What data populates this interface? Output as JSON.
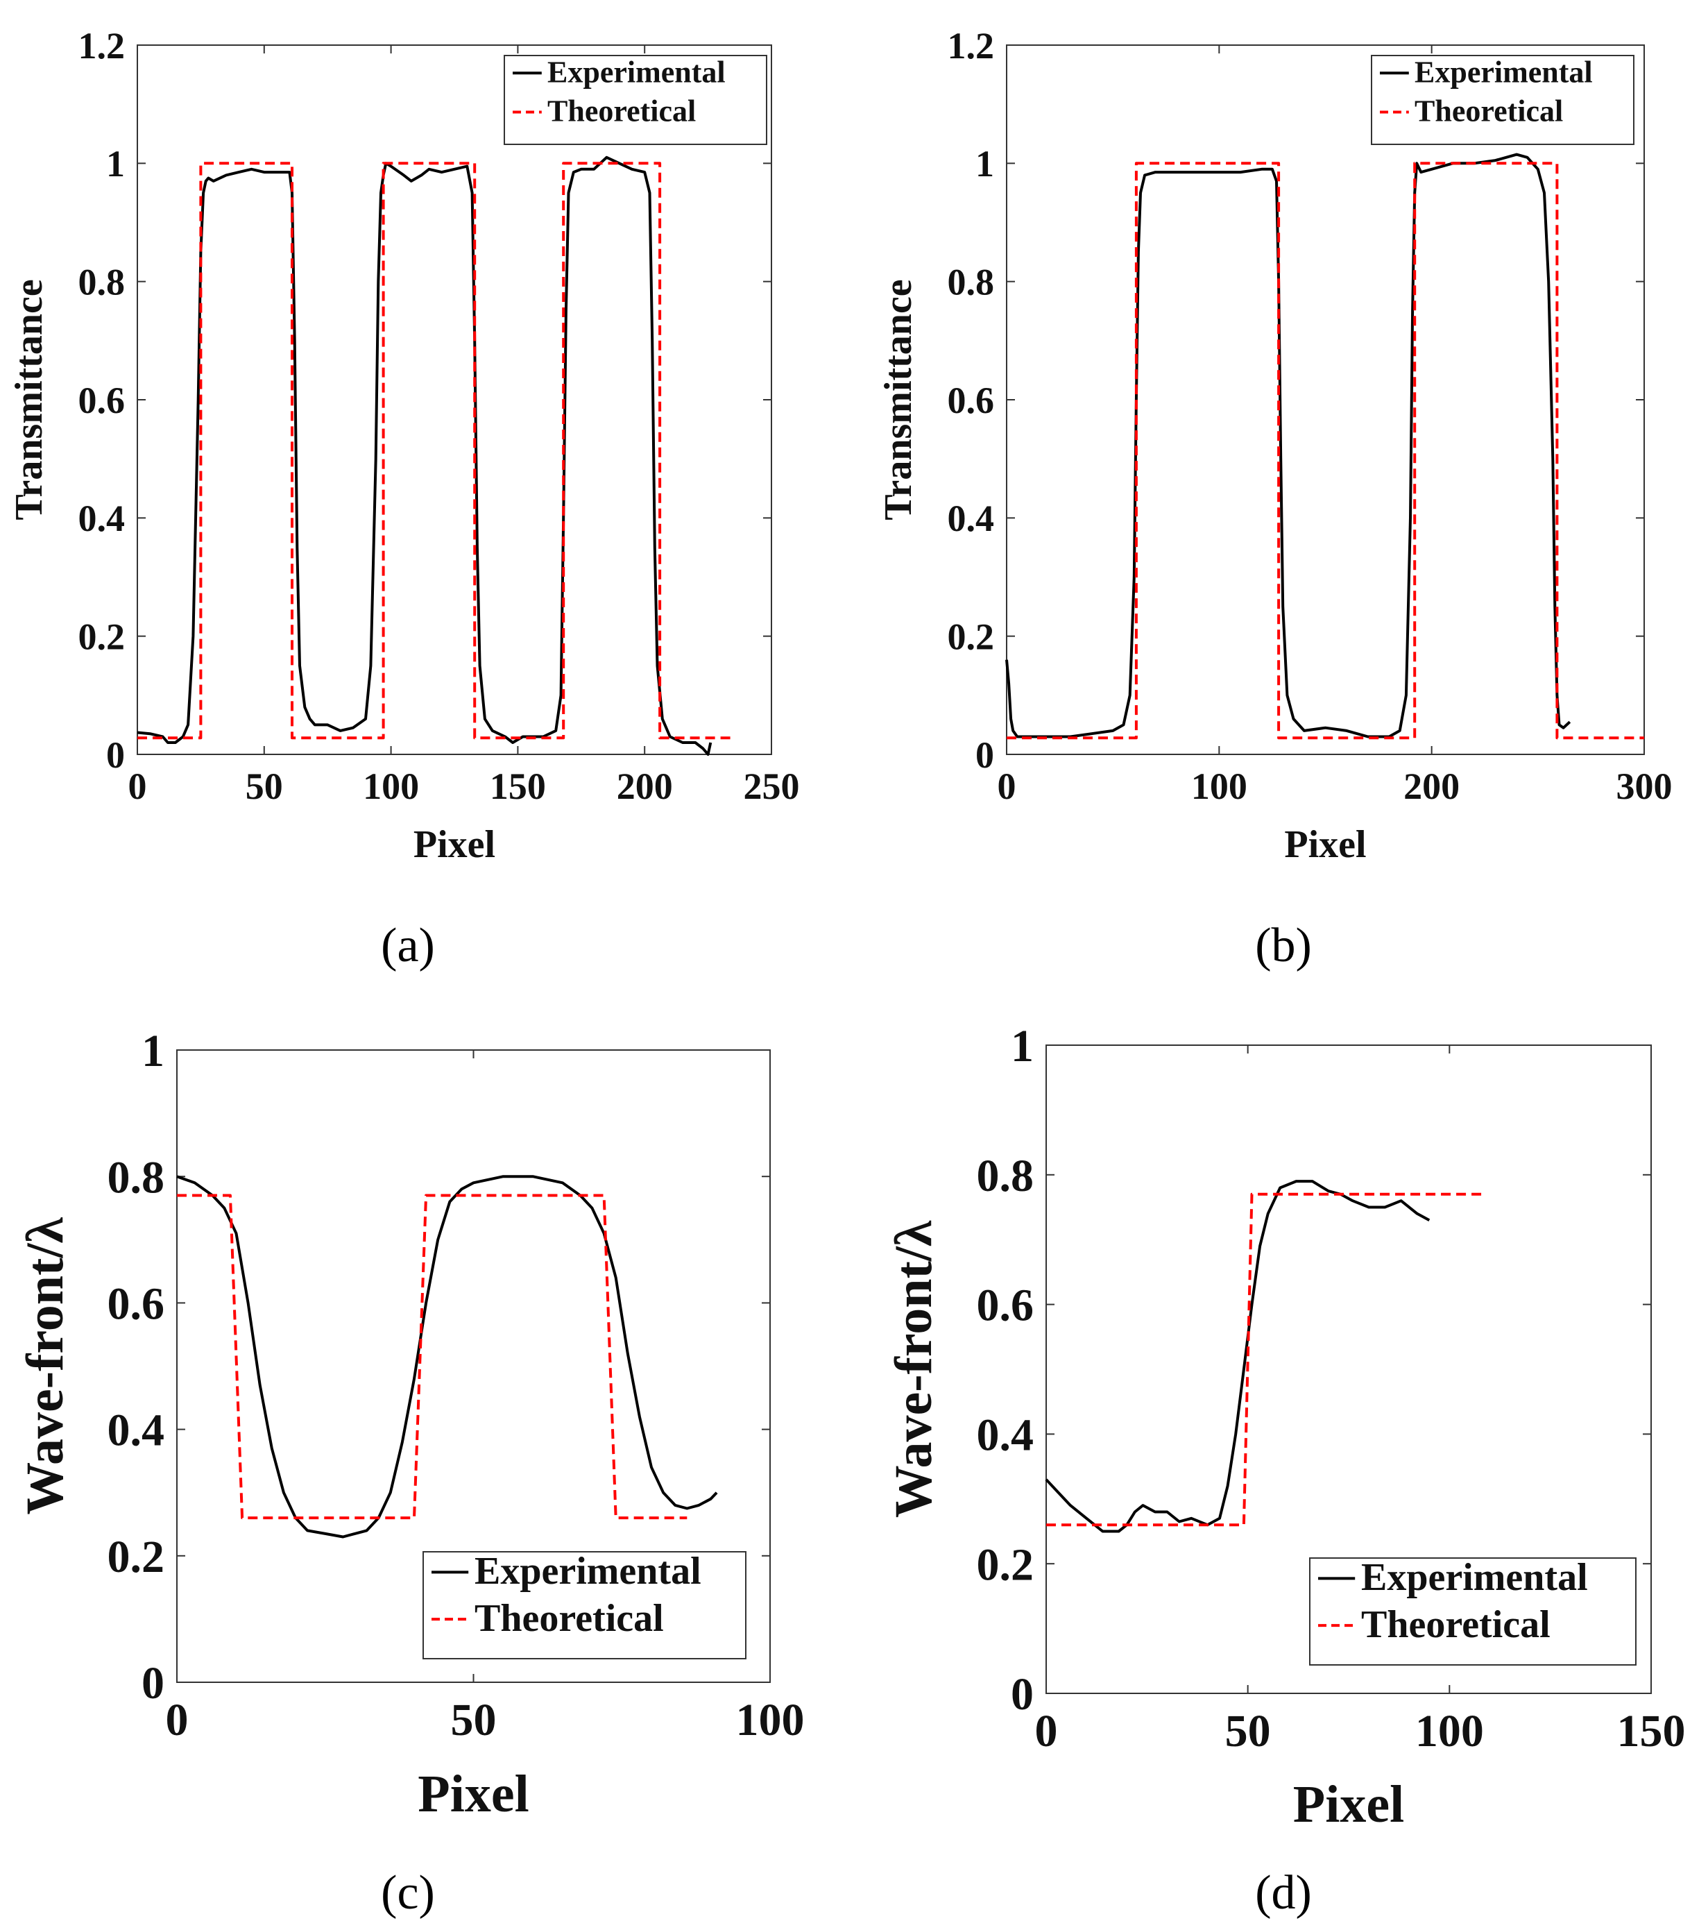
{
  "chart_data": [
    {
      "panel": "a",
      "type": "line",
      "caption": "(a)",
      "xlabel": "Pixel",
      "ylabel": "Transmittance",
      "xlim": [
        0,
        250
      ],
      "ylim": [
        0,
        1.2
      ],
      "xticks": [
        "0",
        "50",
        "100",
        "150",
        "200",
        "250"
      ],
      "yticks": [
        "0",
        "0.2",
        "0.4",
        "0.6",
        "0.8",
        "1",
        "1.2"
      ],
      "xtick_values": [
        0,
        50,
        100,
        150,
        200,
        250
      ],
      "ytick_values": [
        0,
        0.2,
        0.4,
        0.6,
        0.8,
        1,
        1.2
      ],
      "legend_position": "top-right",
      "series": [
        {
          "name": "Experimental",
          "color": "#000000",
          "style": "solid",
          "x": [
            0,
            5,
            10,
            12,
            15,
            18,
            20,
            22,
            24,
            25,
            26,
            27,
            28,
            30,
            35,
            40,
            45,
            50,
            55,
            60,
            61,
            62,
            63,
            64,
            66,
            68,
            70,
            75,
            80,
            85,
            90,
            92,
            94,
            95,
            96,
            97,
            98,
            100,
            105,
            108,
            112,
            115,
            120,
            125,
            130,
            132,
            133,
            134,
            135,
            137,
            140,
            145,
            148,
            152,
            155,
            160,
            165,
            167,
            168,
            169,
            170,
            172,
            175,
            180,
            185,
            190,
            195,
            200,
            202,
            203,
            204,
            205,
            207,
            210,
            215,
            220,
            223,
            225,
            226
          ],
          "y": [
            0.037,
            0.035,
            0.03,
            0.02,
            0.02,
            0.03,
            0.05,
            0.2,
            0.6,
            0.85,
            0.95,
            0.97,
            0.975,
            0.97,
            0.98,
            0.985,
            0.99,
            0.985,
            0.985,
            0.985,
            0.95,
            0.7,
            0.35,
            0.15,
            0.08,
            0.06,
            0.05,
            0.05,
            0.04,
            0.045,
            0.06,
            0.15,
            0.5,
            0.8,
            0.95,
            0.98,
            1.0,
            0.995,
            0.98,
            0.97,
            0.98,
            0.99,
            0.985,
            0.99,
            0.995,
            0.95,
            0.7,
            0.35,
            0.15,
            0.06,
            0.04,
            0.03,
            0.02,
            0.03,
            0.03,
            0.03,
            0.04,
            0.1,
            0.4,
            0.75,
            0.95,
            0.985,
            0.99,
            0.99,
            1.01,
            1.0,
            0.99,
            0.985,
            0.95,
            0.7,
            0.35,
            0.15,
            0.06,
            0.03,
            0.02,
            0.02,
            0.01,
            0.0,
            0.02
          ]
        },
        {
          "name": "Theoretical",
          "color": "#ff0000",
          "style": "dashed",
          "x": [
            0,
            25,
            25,
            61,
            61,
            97,
            97,
            133,
            133,
            168,
            168,
            206,
            206,
            235
          ],
          "y": [
            0.028,
            0.028,
            1.0,
            1.0,
            0.028,
            0.028,
            1.0,
            1.0,
            0.028,
            0.028,
            1.0,
            1.0,
            0.028,
            0.028
          ]
        }
      ]
    },
    {
      "panel": "b",
      "type": "line",
      "caption": "(b)",
      "xlabel": "Pixel",
      "ylabel": "Transmittance",
      "xlim": [
        0,
        300
      ],
      "ylim": [
        0,
        1.2
      ],
      "xticks": [
        "0",
        "100",
        "200",
        "300"
      ],
      "yticks": [
        "0",
        "0.2",
        "0.4",
        "0.6",
        "0.8",
        "1",
        "1.2"
      ],
      "xtick_values": [
        0,
        100,
        200,
        300
      ],
      "ytick_values": [
        0,
        0.2,
        0.4,
        0.6,
        0.8,
        1,
        1.2
      ],
      "legend_position": "top-right",
      "series": [
        {
          "name": "Experimental",
          "color": "#000000",
          "style": "solid",
          "x": [
            0,
            1,
            2,
            3,
            5,
            10,
            20,
            30,
            40,
            50,
            55,
            58,
            60,
            61,
            62,
            63,
            65,
            70,
            80,
            90,
            100,
            110,
            120,
            125,
            127,
            128,
            129,
            130,
            132,
            135,
            140,
            150,
            160,
            170,
            180,
            185,
            188,
            190,
            191,
            192,
            193,
            195,
            200,
            210,
            220,
            230,
            240,
            245,
            250,
            253,
            255,
            257,
            258,
            259,
            260,
            262,
            265
          ],
          "y": [
            0.16,
            0.12,
            0.06,
            0.04,
            0.03,
            0.03,
            0.03,
            0.03,
            0.035,
            0.04,
            0.05,
            0.1,
            0.3,
            0.6,
            0.85,
            0.95,
            0.98,
            0.985,
            0.985,
            0.985,
            0.985,
            0.985,
            0.99,
            0.99,
            0.97,
            0.8,
            0.5,
            0.25,
            0.1,
            0.06,
            0.04,
            0.045,
            0.04,
            0.03,
            0.03,
            0.04,
            0.1,
            0.4,
            0.75,
            0.95,
            1.0,
            0.985,
            0.99,
            1.0,
            1.0,
            1.005,
            1.015,
            1.01,
            0.99,
            0.95,
            0.8,
            0.5,
            0.25,
            0.1,
            0.05,
            0.045,
            0.055
          ]
        },
        {
          "name": "Theoretical",
          "color": "#ff0000",
          "style": "dashed",
          "x": [
            0,
            61,
            61,
            128,
            128,
            192,
            192,
            259,
            259,
            300
          ],
          "y": [
            0.028,
            0.028,
            1.0,
            1.0,
            0.028,
            0.028,
            1.0,
            1.0,
            0.028,
            0.028
          ]
        }
      ]
    },
    {
      "panel": "c",
      "type": "line",
      "caption": "(c)",
      "xlabel": "Pixel",
      "ylabel": "Wave-front/λ",
      "xlim": [
        0,
        100
      ],
      "ylim": [
        0,
        1
      ],
      "xticks": [
        "0",
        "50",
        "100"
      ],
      "yticks": [
        "0",
        "0.2",
        "0.4",
        "0.6",
        "0.8",
        "1"
      ],
      "xtick_values": [
        0,
        50,
        100
      ],
      "ytick_values": [
        0,
        0.2,
        0.4,
        0.6,
        0.8,
        1
      ],
      "legend_position": "bottom-right",
      "series": [
        {
          "name": "Experimental",
          "color": "#000000",
          "style": "solid",
          "x": [
            0,
            3,
            6,
            8,
            10,
            12,
            14,
            16,
            18,
            20,
            22,
            25,
            28,
            30,
            32,
            34,
            36,
            38,
            40,
            42,
            44,
            46,
            48,
            50,
            55,
            60,
            65,
            68,
            70,
            72,
            74,
            76,
            78,
            80,
            82,
            84,
            86,
            88,
            90,
            91
          ],
          "y": [
            0.8,
            0.79,
            0.77,
            0.75,
            0.71,
            0.6,
            0.47,
            0.37,
            0.3,
            0.26,
            0.24,
            0.235,
            0.23,
            0.235,
            0.24,
            0.26,
            0.3,
            0.38,
            0.48,
            0.6,
            0.7,
            0.76,
            0.78,
            0.79,
            0.8,
            0.8,
            0.79,
            0.77,
            0.75,
            0.71,
            0.64,
            0.52,
            0.42,
            0.34,
            0.3,
            0.28,
            0.275,
            0.28,
            0.29,
            0.3
          ]
        },
        {
          "name": "Theoretical",
          "color": "#ff0000",
          "style": "dashed",
          "x": [
            0,
            9,
            9,
            11,
            11,
            40,
            40,
            42,
            42,
            72,
            72,
            74,
            74,
            86
          ],
          "y": [
            0.77,
            0.77,
            0.77,
            0.26,
            0.26,
            0.26,
            0.26,
            0.77,
            0.77,
            0.77,
            0.77,
            0.26,
            0.26,
            0.26
          ]
        }
      ]
    },
    {
      "panel": "d",
      "type": "line",
      "caption": "(d)",
      "xlabel": "Pixel",
      "ylabel": "Wave-front/λ",
      "xlim": [
        0,
        150
      ],
      "ylim": [
        0,
        1
      ],
      "xticks": [
        "0",
        "50",
        "100",
        "150"
      ],
      "yticks": [
        "0",
        "0.2",
        "0.4",
        "0.6",
        "0.8",
        "1"
      ],
      "xtick_values": [
        0,
        50,
        100,
        150
      ],
      "ytick_values": [
        0,
        0.2,
        0.4,
        0.6,
        0.8,
        1
      ],
      "legend_position": "bottom-right",
      "series": [
        {
          "name": "Experimental",
          "color": "#000000",
          "style": "solid",
          "x": [
            0,
            3,
            6,
            10,
            14,
            18,
            20,
            22,
            24,
            27,
            30,
            33,
            36,
            40,
            43,
            45,
            47,
            49,
            51,
            53,
            55,
            58,
            62,
            66,
            70,
            73,
            76,
            80,
            84,
            88,
            92,
            95
          ],
          "y": [
            0.33,
            0.31,
            0.29,
            0.27,
            0.25,
            0.25,
            0.26,
            0.28,
            0.29,
            0.28,
            0.28,
            0.265,
            0.27,
            0.26,
            0.27,
            0.32,
            0.4,
            0.5,
            0.6,
            0.69,
            0.74,
            0.78,
            0.79,
            0.79,
            0.775,
            0.77,
            0.76,
            0.75,
            0.75,
            0.76,
            0.74,
            0.73
          ]
        },
        {
          "name": "Theoretical",
          "color": "#ff0000",
          "style": "dashed",
          "x": [
            0,
            49,
            51,
            108
          ],
          "y": [
            0.26,
            0.26,
            0.77,
            0.77
          ]
        }
      ]
    }
  ]
}
